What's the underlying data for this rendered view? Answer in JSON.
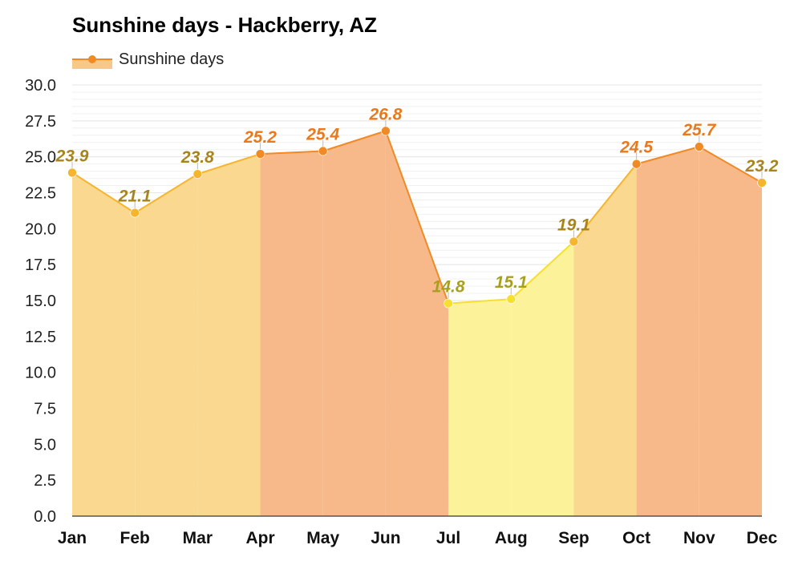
{
  "chart_data": {
    "type": "area",
    "title": "Sunshine days - Hackberry, AZ",
    "categories": [
      "Jan",
      "Feb",
      "Mar",
      "Apr",
      "May",
      "Jun",
      "Jul",
      "Aug",
      "Sep",
      "Oct",
      "Nov",
      "Dec"
    ],
    "series": [
      {
        "name": "Sunshine days",
        "values": [
          23.9,
          21.1,
          23.8,
          25.2,
          25.4,
          26.8,
          14.8,
          15.1,
          19.1,
          24.5,
          25.7,
          23.2
        ],
        "labels": [
          "23.9",
          "21.1",
          "23.8",
          "25.2",
          "25.4",
          "26.8",
          "14.8",
          "15.1",
          "19.1",
          "24.5",
          "25.7",
          "23.2"
        ]
      }
    ],
    "ylim": [
      0,
      30
    ],
    "yticks": [
      "0.0",
      "2.5",
      "5.0",
      "7.5",
      "10.0",
      "12.5",
      "15.0",
      "17.5",
      "20.0",
      "22.5",
      "25.0",
      "27.5",
      "30.0"
    ],
    "grid": true,
    "legend_position": "top-left",
    "colors": {
      "high_fill": "#f7b98a",
      "high_line": "#f08a24",
      "high_label": "#e8791c",
      "mid_fill": "#fad88f",
      "mid_line": "#f5b52d",
      "mid_label": "#a8841c",
      "low_fill": "#fcf29a",
      "low_line": "#f7e02d",
      "low_label": "#a8a01c",
      "legend_fill": "#f8c889",
      "legend_line": "#f08a24",
      "grid": "#e6e6e6",
      "axis": "#555555"
    }
  }
}
